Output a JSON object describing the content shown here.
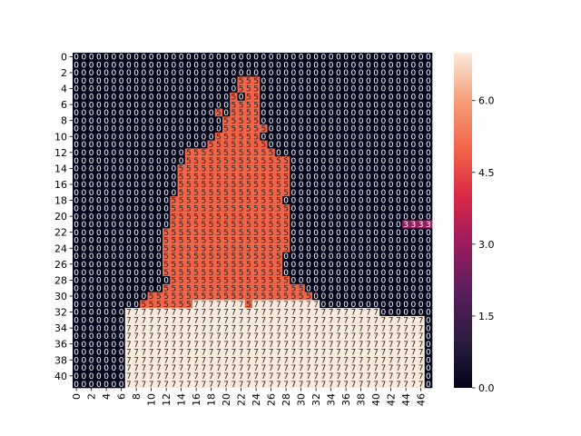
{
  "chart_data": {
    "type": "heatmap",
    "title": "",
    "xlabel": "",
    "ylabel": "",
    "n_rows": 42,
    "n_cols": 48,
    "annotated": true,
    "value_range": [
      0,
      7
    ],
    "x_tick_labels": [
      "0",
      "2",
      "4",
      "6",
      "8",
      "10",
      "12",
      "14",
      "16",
      "18",
      "20",
      "22",
      "24",
      "26",
      "28",
      "30",
      "32",
      "34",
      "36",
      "38",
      "40",
      "42",
      "44",
      "46"
    ],
    "y_tick_labels": [
      "0",
      "2",
      "4",
      "6",
      "8",
      "10",
      "12",
      "14",
      "16",
      "18",
      "20",
      "22",
      "24",
      "26",
      "28",
      "30",
      "32",
      "34",
      "36",
      "38",
      "40"
    ],
    "colorbar": {
      "ticks": [
        "0.0",
        "1.5",
        "3.0",
        "4.5",
        "6.0"
      ],
      "tick_values": [
        0,
        1.5,
        3.0,
        4.5,
        6.0
      ],
      "colormap": "rocket"
    },
    "rows": [
      "000000000000000000000000000000000000000000000000",
      "000000000000000000000000000000000000000000000000",
      "000000000000000000000000000000000000000000000000",
      "000000000000000000000055500000000000000000000000",
      "000000000000000000000055500000000000000000000000",
      "000000000000000000000505500000000000000000000000",
      "000000000000000000000555500000000000000000000000",
      "000000000000000000050555500000000000000000000000",
      "000000000000000000005555500000000000000000000000",
      "000000000000000000005555550000000000000000000000",
      "000000000000000000055555500000000000000000000000",
      "000000000000000000555555550000000000000000000000",
      "000000000000000555555555555000000000000000000000",
      "000000000000000555555555555550000000000000000000",
      "000000000000005555555555555550000000000000000000",
      "000000000000005555555555555550000000000000000000",
      "000000000000005555555555555550000000000000000000",
      "000000000000005555555555555550000000000000000000",
      "000000000000055555555555555500000000000000000000",
      "000000000000055555555555555550000000000000000000",
      "000000000000055555555555555550000000000000000000",
      "000000000000055555555555555550000000000000000000",
      "000000000000555555555555555550000000000000000000",
      "000000000000555555555555555550000000000000000000",
      "000000000000555555555555555550000000000000000000",
      "000000000000555555555555555500000000000000000000",
      "000000000000555555555555555500000000000000000000",
      "000000000000555555555555555500000000000000000000",
      "000000000000055555555555555550000000000000000000",
      "000000000000555555555555555555500000000000000000",
      "000000000055555555555555555555550000000000000000",
      "000000000555555577777775777777777000000000000000",
      "000000077777777777777777777777777777777770000000",
      "000000077777777777777777777777777777777777777770",
      "000000077777777777777777777777777777777777777770",
      "000000077777777777777777777777777777777777777770",
      "000000077777777777777777777777777777777777777770",
      "000000077777777777777777777777777777777777777770",
      "000000077777777777777777777777777777777777777770",
      "000000077777777777777777777777777777777777777770",
      "000000077777777777777777777777777777777777777770",
      "000000077777777777777777777777777777777777777770"
    ],
    "overrides": [
      {
        "row": 21,
        "col": 44,
        "value": 3
      },
      {
        "row": 21,
        "col": 45,
        "value": 3
      },
      {
        "row": 21,
        "col": 46,
        "value": 3
      },
      {
        "row": 21,
        "col": 47,
        "value": 3
      }
    ]
  }
}
